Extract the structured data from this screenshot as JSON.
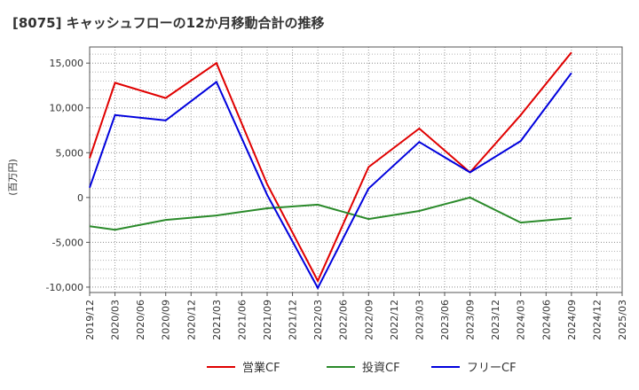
{
  "chart_data": {
    "type": "line",
    "title": "[8075]  キャッシュフローの12か月移動合計の推移",
    "ylabel": "(百万円)",
    "xlabel": "",
    "x_ticks": [
      "2019/12",
      "2020/03",
      "2020/06",
      "2020/09",
      "2020/12",
      "2021/03",
      "2021/06",
      "2021/09",
      "2021/12",
      "2022/03",
      "2022/06",
      "2022/09",
      "2022/12",
      "2023/03",
      "2023/06",
      "2023/09",
      "2023/12",
      "2024/03",
      "2024/06",
      "2024/09",
      "2024/12",
      "2025/03"
    ],
    "y_ticks": [
      "-10,000",
      "-5,000",
      "0",
      "5,000",
      "10,000",
      "15,000"
    ],
    "ylim": [
      -10600,
      16800
    ],
    "grid": true,
    "legend_position": "bottom",
    "series": [
      {
        "name": "営業CF",
        "color": "#e00000",
        "points": [
          [
            "2019/12",
            4400
          ],
          [
            "2020/03",
            12800
          ],
          [
            "2020/09",
            11100
          ],
          [
            "2021/03",
            15000
          ],
          [
            "2021/09",
            1500
          ],
          [
            "2022/03",
            -9300
          ],
          [
            "2022/09",
            3400
          ],
          [
            "2023/03",
            7700
          ],
          [
            "2023/09",
            2800
          ],
          [
            "2024/03",
            9200
          ],
          [
            "2024/09",
            16200
          ]
        ]
      },
      {
        "name": "投資CF",
        "color": "#2a8a2a",
        "points": [
          [
            "2019/12",
            -3200
          ],
          [
            "2020/03",
            -3600
          ],
          [
            "2020/09",
            -2500
          ],
          [
            "2021/03",
            -2000
          ],
          [
            "2021/09",
            -1200
          ],
          [
            "2022/03",
            -800
          ],
          [
            "2022/09",
            -2400
          ],
          [
            "2023/03",
            -1500
          ],
          [
            "2023/09",
            0
          ],
          [
            "2024/03",
            -2800
          ],
          [
            "2024/09",
            -2300
          ]
        ]
      },
      {
        "name": "フリーCF",
        "color": "#0000dd",
        "points": [
          [
            "2019/12",
            1100
          ],
          [
            "2020/03",
            9200
          ],
          [
            "2020/09",
            8600
          ],
          [
            "2021/03",
            12900
          ],
          [
            "2021/09",
            300
          ],
          [
            "2022/03",
            -10100
          ],
          [
            "2022/09",
            1000
          ],
          [
            "2023/03",
            6200
          ],
          [
            "2023/09",
            2800
          ],
          [
            "2024/03",
            6300
          ],
          [
            "2024/09",
            13900
          ]
        ]
      }
    ]
  }
}
